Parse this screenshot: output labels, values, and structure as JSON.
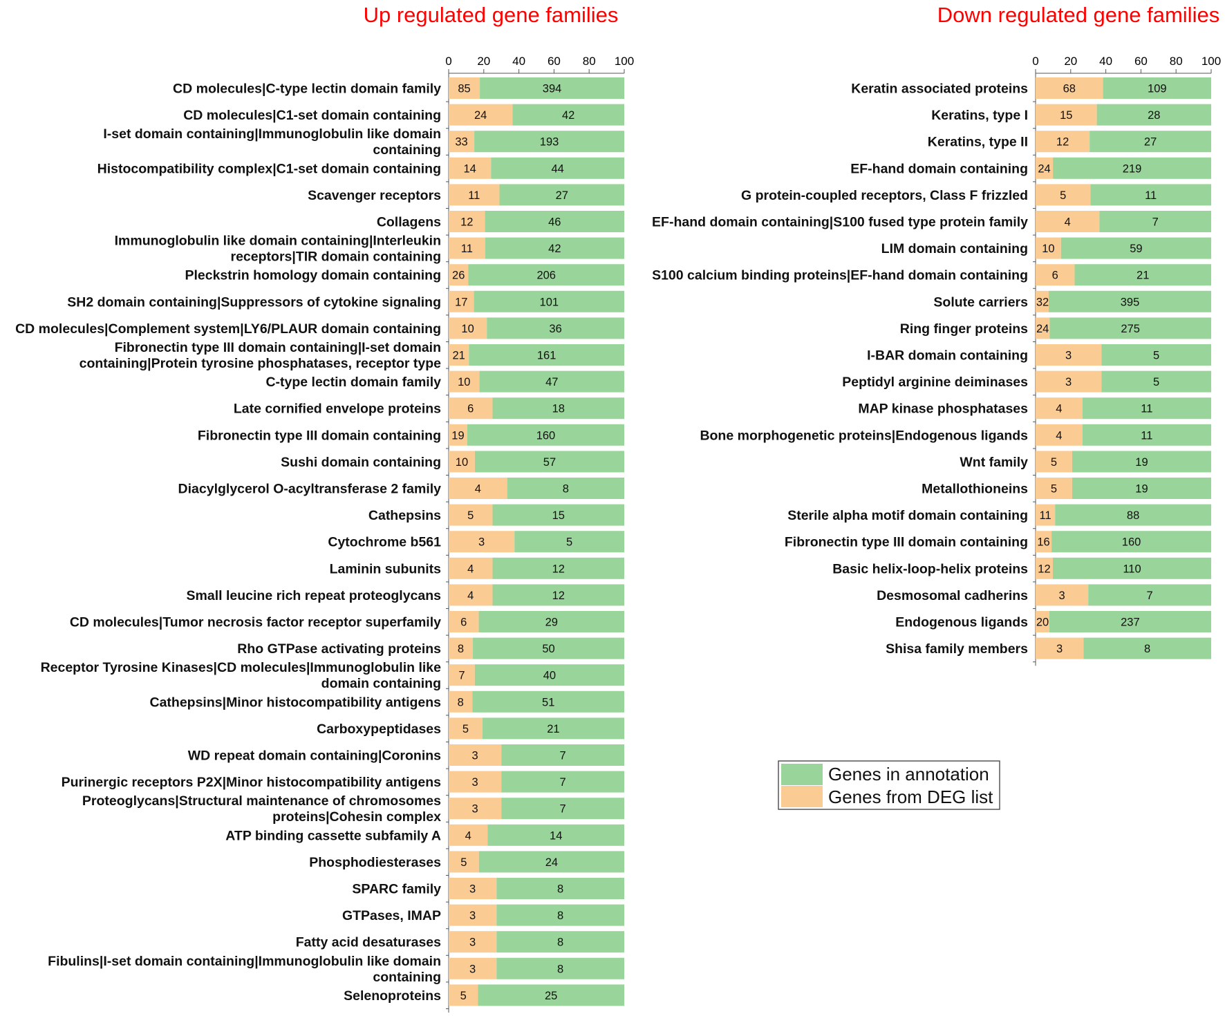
{
  "colors": {
    "annotation": "#99d49a",
    "deg": "#fbcb94",
    "title": "#ff0000"
  },
  "legend": {
    "annotation_label": "Genes in annotation",
    "deg_label": "Genes from DEG list"
  },
  "chart_data": [
    {
      "type": "bar",
      "orientation": "horizontal",
      "stacked": "percent",
      "title": "Up regulated gene families",
      "xlim": [
        0,
        100
      ],
      "xticks": [
        0,
        20,
        40,
        60,
        80,
        100
      ],
      "series": [
        {
          "name": "Genes from DEG list",
          "values": [
            85,
            24,
            33,
            14,
            11,
            12,
            11,
            26,
            17,
            10,
            21,
            10,
            6,
            19,
            10,
            4,
            5,
            3,
            4,
            4,
            6,
            8,
            7,
            8,
            5,
            3,
            3,
            3,
            4,
            5,
            3,
            3,
            3,
            3,
            5
          ]
        },
        {
          "name": "Genes in annotation",
          "values": [
            394,
            42,
            193,
            44,
            27,
            46,
            42,
            206,
            101,
            36,
            161,
            47,
            18,
            160,
            57,
            8,
            15,
            5,
            12,
            12,
            29,
            50,
            40,
            51,
            21,
            7,
            7,
            7,
            14,
            24,
            8,
            8,
            8,
            8,
            25
          ]
        }
      ],
      "categories": [
        [
          "CD molecules|C-type lectin domain family"
        ],
        [
          "CD molecules|C1-set domain containing"
        ],
        [
          "I-set domain containing|Immunoglobulin like domain",
          "containing"
        ],
        [
          "Histocompatibility complex|C1-set domain containing"
        ],
        [
          "Scavenger receptors"
        ],
        [
          "Collagens"
        ],
        [
          "Immunoglobulin like domain containing|Interleukin",
          "receptors|TIR domain containing"
        ],
        [
          "Pleckstrin homology domain containing"
        ],
        [
          "SH2 domain containing|Suppressors of cytokine signaling"
        ],
        [
          "CD molecules|Complement system|LY6/PLAUR domain containing"
        ],
        [
          "Fibronectin type III domain containing|I-set domain",
          "containing|Protein tyrosine phosphatases, receptor type"
        ],
        [
          "C-type lectin domain family"
        ],
        [
          "Late cornified envelope proteins"
        ],
        [
          "Fibronectin type III domain containing"
        ],
        [
          "Sushi domain containing"
        ],
        [
          "Diacylglycerol O-acyltransferase 2 family"
        ],
        [
          "Cathepsins"
        ],
        [
          "Cytochrome b561"
        ],
        [
          "Laminin subunits"
        ],
        [
          "Small leucine rich repeat proteoglycans"
        ],
        [
          "CD molecules|Tumor necrosis factor receptor superfamily"
        ],
        [
          "Rho GTPase activating proteins"
        ],
        [
          "Receptor Tyrosine Kinases|CD molecules|Immunoglobulin like",
          "domain containing"
        ],
        [
          "Cathepsins|Minor histocompatibility antigens"
        ],
        [
          "Carboxypeptidases"
        ],
        [
          "WD repeat domain containing|Coronins"
        ],
        [
          "Purinergic receptors P2X|Minor histocompatibility antigens"
        ],
        [
          "Proteoglycans|Structural maintenance of chromosomes",
          "proteins|Cohesin complex"
        ],
        [
          "ATP binding cassette subfamily A"
        ],
        [
          "Phosphodiesterases"
        ],
        [
          "SPARC family"
        ],
        [
          "GTPases, IMAP"
        ],
        [
          "Fatty acid desaturases"
        ],
        [
          "Fibulins|I-set domain containing|Immunoglobulin like domain",
          "containing"
        ],
        [
          "Selenoproteins"
        ]
      ]
    },
    {
      "type": "bar",
      "orientation": "horizontal",
      "stacked": "percent",
      "title": "Down regulated gene families",
      "xlim": [
        0,
        100
      ],
      "xticks": [
        0,
        20,
        40,
        60,
        80,
        100
      ],
      "series": [
        {
          "name": "Genes from DEG list",
          "values": [
            68,
            15,
            12,
            24,
            5,
            4,
            10,
            6,
            32,
            24,
            3,
            3,
            4,
            4,
            5,
            5,
            11,
            16,
            12,
            3,
            20,
            3
          ]
        },
        {
          "name": "Genes in annotation",
          "values": [
            109,
            28,
            27,
            219,
            11,
            7,
            59,
            21,
            395,
            275,
            5,
            5,
            11,
            11,
            19,
            19,
            88,
            160,
            110,
            7,
            237,
            8
          ]
        }
      ],
      "categories": [
        [
          "Keratin associated proteins"
        ],
        [
          "Keratins, type I"
        ],
        [
          "Keratins, type II"
        ],
        [
          "EF-hand domain containing"
        ],
        [
          "G protein-coupled receptors, Class F frizzled"
        ],
        [
          "EF-hand domain containing|S100 fused type protein family"
        ],
        [
          "LIM domain containing"
        ],
        [
          "S100 calcium binding proteins|EF-hand domain containing"
        ],
        [
          "Solute carriers"
        ],
        [
          "Ring finger proteins"
        ],
        [
          "I-BAR domain containing"
        ],
        [
          "Peptidyl arginine deiminases"
        ],
        [
          "MAP kinase phosphatases"
        ],
        [
          "Bone morphogenetic proteins|Endogenous ligands"
        ],
        [
          "Wnt family"
        ],
        [
          "Metallothioneins"
        ],
        [
          "Sterile alpha motif domain containing"
        ],
        [
          "Fibronectin type III domain containing"
        ],
        [
          "Basic helix-loop-helix proteins"
        ],
        [
          "Desmosomal cadherins"
        ],
        [
          "Endogenous ligands"
        ],
        [
          "Shisa family members"
        ]
      ]
    }
  ]
}
